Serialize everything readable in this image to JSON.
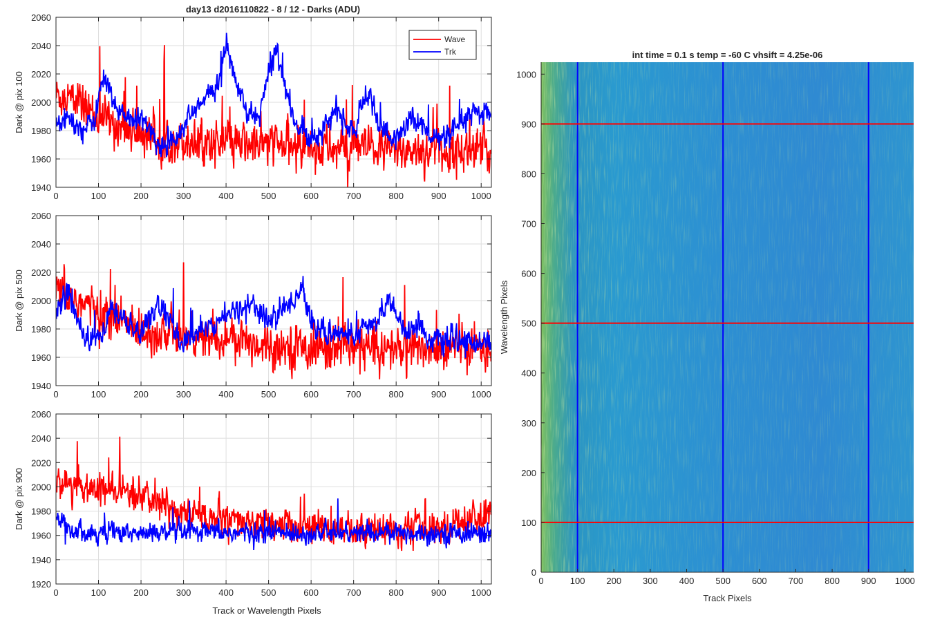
{
  "figure": {
    "title": "day13 d2016110822 - 8 / 12 - Darks (ADU)"
  },
  "chart_data": [
    {
      "type": "line",
      "ylabel": "Dark @ pix 100",
      "xlabel": "",
      "xlim": [
        0,
        1024
      ],
      "ylim": [
        1940,
        2060
      ],
      "xticks": [
        0,
        100,
        200,
        300,
        400,
        500,
        600,
        700,
        800,
        900,
        1000
      ],
      "yticks": [
        1940,
        1960,
        1980,
        2000,
        2020,
        2040,
        2060
      ],
      "grid": true,
      "legend": "top-right",
      "series": [
        {
          "name": "Wave",
          "color": "#ff0000",
          "base_curve": [
            [
              0,
              2005
            ],
            [
              50,
              2000
            ],
            [
              100,
              1990
            ],
            [
              150,
              1983
            ],
            [
              200,
              1978
            ],
            [
              250,
              1975
            ],
            [
              300,
              1973
            ],
            [
              350,
              1972
            ],
            [
              400,
              1970
            ],
            [
              500,
              1970
            ],
            [
              600,
              1968
            ],
            [
              700,
              1967
            ],
            [
              800,
              1966
            ],
            [
              900,
              1966
            ],
            [
              1024,
              1966
            ]
          ],
          "noise": 11
        },
        {
          "name": "Trk",
          "color": "#0000ff",
          "base_curve": [
            [
              0,
              1985
            ],
            [
              30,
              1990
            ],
            [
              60,
              1978
            ],
            [
              90,
              1988
            ],
            [
              115,
              2022
            ],
            [
              140,
              1995
            ],
            [
              170,
              1990
            ],
            [
              210,
              1985
            ],
            [
              250,
              1967
            ],
            [
              290,
              1980
            ],
            [
              330,
              1995
            ],
            [
              360,
              2005
            ],
            [
              380,
              2012
            ],
            [
              400,
              2040
            ],
            [
              420,
              2018
            ],
            [
              450,
              1990
            ],
            [
              480,
              1992
            ],
            [
              500,
              2020
            ],
            [
              520,
              2040
            ],
            [
              540,
              2008
            ],
            [
              560,
              1985
            ],
            [
              600,
              1975
            ],
            [
              630,
              1982
            ],
            [
              660,
              1995
            ],
            [
              680,
              1985
            ],
            [
              700,
              1978
            ],
            [
              720,
              1996
            ],
            [
              740,
              2005
            ],
            [
              760,
              1985
            ],
            [
              790,
              1972
            ],
            [
              810,
              1978
            ],
            [
              840,
              1990
            ],
            [
              870,
              1980
            ],
            [
              900,
              1973
            ],
            [
              930,
              1976
            ],
            [
              960,
              1988
            ],
            [
              990,
              1992
            ],
            [
              1024,
              1990
            ]
          ],
          "noise": 6
        }
      ]
    },
    {
      "type": "line",
      "ylabel": "Dark @ pix 500",
      "xlabel": "",
      "xlim": [
        0,
        1024
      ],
      "ylim": [
        1940,
        2060
      ],
      "xticks": [
        0,
        100,
        200,
        300,
        400,
        500,
        600,
        700,
        800,
        900,
        1000
      ],
      "yticks": [
        1940,
        1960,
        1980,
        2000,
        2020,
        2040,
        2060
      ],
      "grid": true,
      "series": [
        {
          "name": "Wave",
          "color": "#ff0000",
          "base_curve": [
            [
              0,
              2005
            ],
            [
              50,
              2000
            ],
            [
              100,
              1992
            ],
            [
              150,
              1985
            ],
            [
              200,
              1980
            ],
            [
              250,
              1977
            ],
            [
              300,
              1975
            ],
            [
              400,
              1972
            ],
            [
              500,
              1969
            ],
            [
              600,
              1967
            ],
            [
              700,
              1966
            ],
            [
              800,
              1966
            ],
            [
              900,
              1966
            ],
            [
              1024,
              1966
            ]
          ],
          "noise": 11
        },
        {
          "name": "Trk",
          "color": "#0000ff",
          "base_curve": [
            [
              0,
              1995
            ],
            [
              30,
              2005
            ],
            [
              70,
              1972
            ],
            [
              110,
              1975
            ],
            [
              130,
              1995
            ],
            [
              160,
              1985
            ],
            [
              200,
              1977
            ],
            [
              240,
              1998
            ],
            [
              260,
              1990
            ],
            [
              290,
              1970
            ],
            [
              330,
              1975
            ],
            [
              370,
              1985
            ],
            [
              460,
              1998
            ],
            [
              500,
              1985
            ],
            [
              540,
              1995
            ],
            [
              580,
              2008
            ],
            [
              600,
              1985
            ],
            [
              630,
              1975
            ],
            [
              660,
              1978
            ],
            [
              700,
              1975
            ],
            [
              760,
              1985
            ],
            [
              780,
              2005
            ],
            [
              800,
              1992
            ],
            [
              820,
              1975
            ],
            [
              850,
              1985
            ],
            [
              880,
              1972
            ],
            [
              1024,
              1970
            ]
          ],
          "noise": 6
        }
      ]
    },
    {
      "type": "line",
      "ylabel": "Dark @ pix 900",
      "xlabel": "Track or Wavelength Pixels",
      "xlim": [
        0,
        1024
      ],
      "ylim": [
        1920,
        2060
      ],
      "xticks": [
        0,
        100,
        200,
        300,
        400,
        500,
        600,
        700,
        800,
        900,
        1000
      ],
      "yticks": [
        1920,
        1940,
        1960,
        1980,
        2000,
        2020,
        2040,
        2060
      ],
      "grid": true,
      "series": [
        {
          "name": "Wave",
          "color": "#ff0000",
          "base_curve": [
            [
              0,
              2005
            ],
            [
              60,
              2000
            ],
            [
              120,
              1996
            ],
            [
              180,
              1993
            ],
            [
              240,
              1988
            ],
            [
              280,
              1980
            ],
            [
              350,
              1975
            ],
            [
              400,
              1972
            ],
            [
              500,
              1968
            ],
            [
              600,
              1966
            ],
            [
              700,
              1965
            ],
            [
              800,
              1965
            ],
            [
              900,
              1966
            ],
            [
              950,
              1972
            ],
            [
              1024,
              1978
            ]
          ],
          "noise": 10
        },
        {
          "name": "Trk",
          "color": "#0000ff",
          "base_curve": [
            [
              0,
              1975
            ],
            [
              40,
              1965
            ],
            [
              100,
              1962
            ],
            [
              1024,
              1962
            ]
          ],
          "noise": 6
        }
      ]
    },
    {
      "type": "heatmap",
      "title": "int time = 0.1 s   temp = -60 C   vhsift = 4.25e-06",
      "xlabel": "Track Pixels",
      "ylabel": "Wavelength Pixels",
      "xlim": [
        0,
        1024
      ],
      "ylim": [
        0,
        1024
      ],
      "xticks": [
        0,
        100,
        200,
        300,
        400,
        500,
        600,
        700,
        800,
        900,
        1000
      ],
      "yticks": [
        0,
        100,
        200,
        300,
        400,
        500,
        600,
        700,
        800,
        900,
        1000
      ],
      "colormap": "parula",
      "vertical_lines": {
        "x": [
          100,
          500,
          900
        ],
        "color": "#0000ff"
      },
      "horizontal_lines": {
        "y": [
          100,
          500,
          900
        ],
        "color": "#ff0000"
      }
    }
  ]
}
